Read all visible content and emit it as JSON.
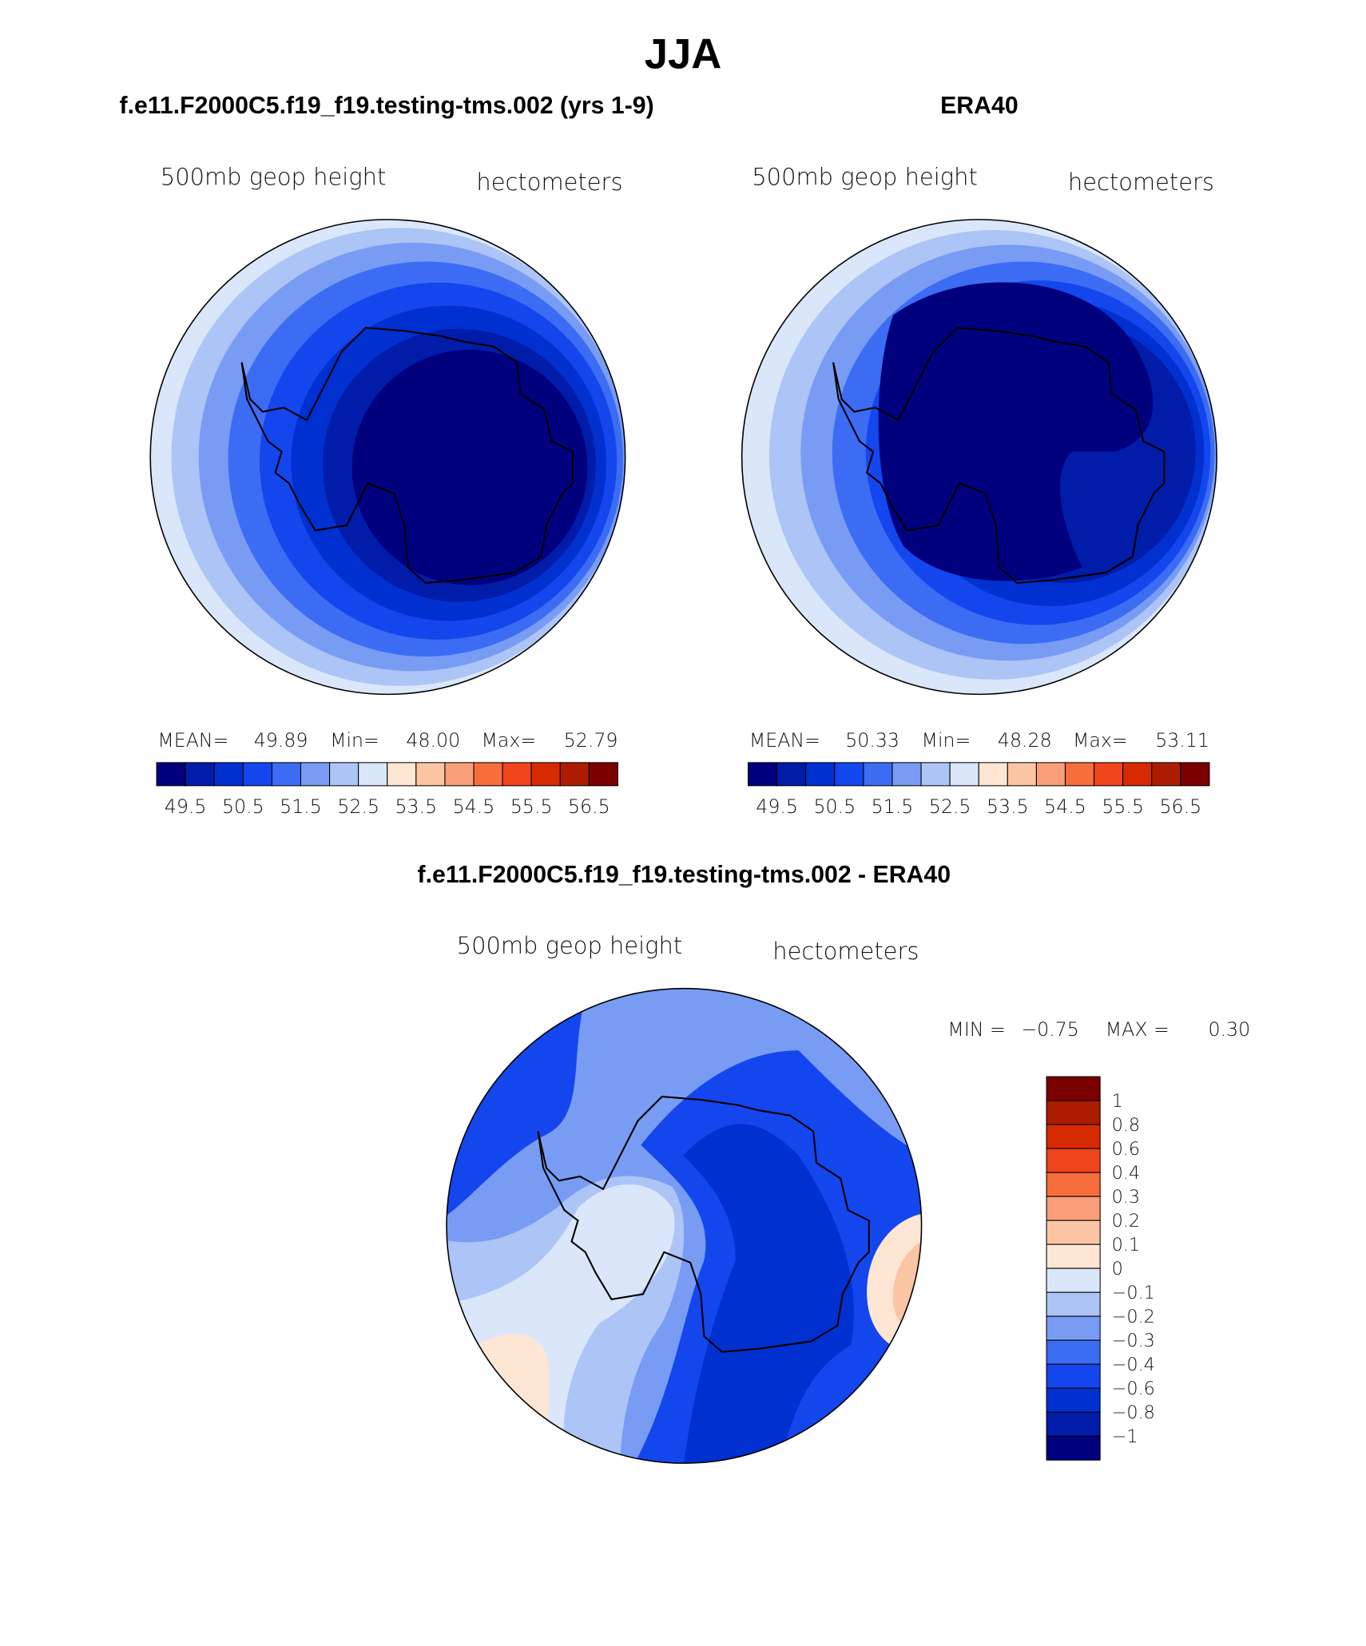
{
  "title": "JJA",
  "colorbar_colors": [
    "#00007f",
    "#001ca8",
    "#0030d0",
    "#1446ee",
    "#3c6cf4",
    "#789cf4",
    "#acc4f6",
    "#dae7fb",
    "#fde6d4",
    "#fbc5a4",
    "#f99e78",
    "#f76d3b",
    "#f0441a",
    "#d82a00",
    "#ac1c00",
    "#7a0000"
  ],
  "panels": [
    {
      "title": "f.e11.F2000C5.f19_f19.testing-tms.002 (yrs 1-9)",
      "field_label": "500mb geop height",
      "units_label": "hectometers",
      "stats": [
        {
          "label": "MEAN=",
          "value": "49.89"
        },
        {
          "label": "Min=",
          "value": "48.00"
        },
        {
          "label": "Max=",
          "value": "52.79"
        }
      ],
      "colorbar_labels": [
        "49.5",
        "50.5",
        "51.5",
        "52.5",
        "53.5",
        "54.5",
        "55.5",
        "56.5"
      ]
    },
    {
      "title": "ERA40",
      "field_label": "500mb geop height",
      "units_label": "hectometers",
      "stats": [
        {
          "label": "MEAN=",
          "value": "50.33"
        },
        {
          "label": "Min=",
          "value": "48.28"
        },
        {
          "label": "Max=",
          "value": "53.11"
        }
      ],
      "colorbar_labels": [
        "49.5",
        "50.5",
        "51.5",
        "52.5",
        "53.5",
        "54.5",
        "55.5",
        "56.5"
      ]
    },
    {
      "title": "f.e11.F2000C5.f19_f19.testing-tms.002 - ERA40",
      "field_label": "500mb geop height",
      "units_label": "hectometers",
      "stats": [
        {
          "label": "MIN =",
          "value": "−0.75"
        },
        {
          "label": "MAX =",
          "value": "0.30"
        }
      ],
      "colorbar_labels": [
        "1",
        "0.8",
        "0.6",
        "0.4",
        "0.3",
        "0.2",
        "0.1",
        "0",
        "−0.1",
        "−0.2",
        "−0.3",
        "−0.4",
        "−0.6",
        "−0.8",
        "−1"
      ]
    }
  ]
}
